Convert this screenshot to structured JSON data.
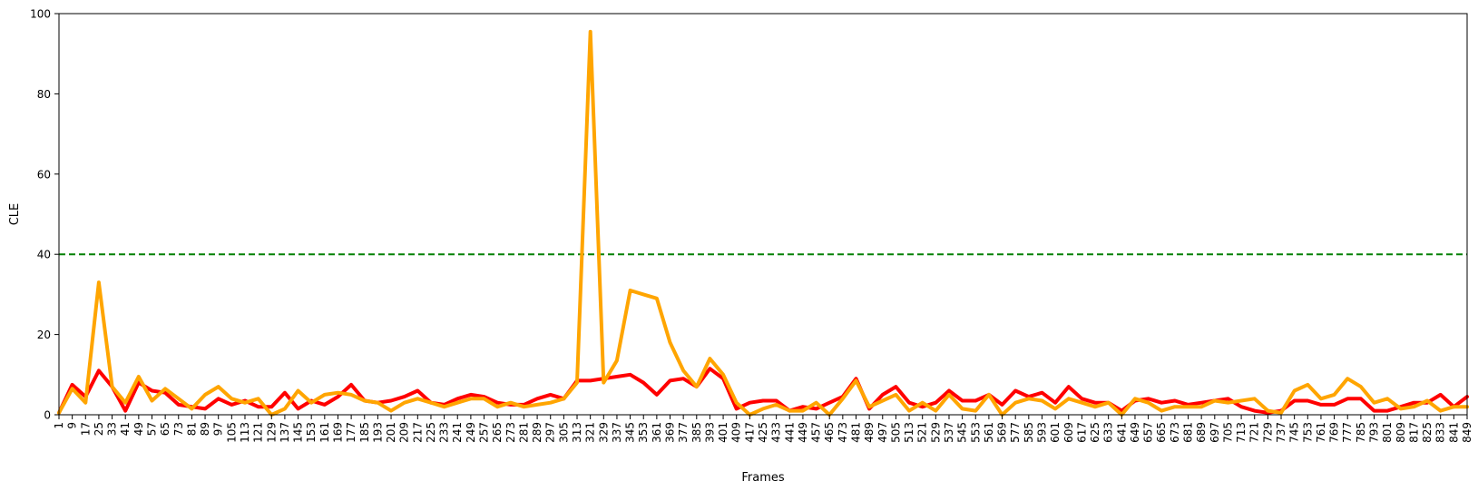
{
  "chart_data": {
    "type": "line",
    "xlabel": "Frames",
    "ylabel": "CLE",
    "ylim": [
      0,
      100
    ],
    "yticks": [
      0,
      20,
      40,
      60,
      80,
      100
    ],
    "x": [
      1,
      9,
      17,
      25,
      33,
      41,
      49,
      57,
      65,
      73,
      81,
      89,
      97,
      105,
      113,
      121,
      129,
      137,
      145,
      153,
      161,
      169,
      177,
      185,
      193,
      201,
      209,
      217,
      225,
      233,
      241,
      249,
      257,
      265,
      273,
      281,
      289,
      297,
      305,
      313,
      321,
      329,
      337,
      345,
      353,
      361,
      369,
      377,
      385,
      393,
      401,
      409,
      417,
      425,
      433,
      441,
      449,
      457,
      465,
      473,
      481,
      489,
      497,
      505,
      513,
      521,
      529,
      537,
      545,
      553,
      561,
      569,
      577,
      585,
      593,
      601,
      609,
      617,
      625,
      633,
      641,
      649,
      657,
      665,
      673,
      681,
      689,
      697,
      705,
      713,
      721,
      729,
      737,
      745,
      753,
      761,
      769,
      777,
      785,
      793,
      801,
      809,
      817,
      825,
      833,
      841,
      849
    ],
    "threshold": {
      "value": 40,
      "color": "#008000",
      "style": "dashed"
    },
    "series": [
      {
        "color": "#ff0000",
        "values": [
          0.5,
          7.5,
          4.5,
          11,
          7,
          1,
          8,
          6,
          5.5,
          2.5,
          2,
          1.5,
          4,
          2.5,
          3.5,
          2,
          2,
          5.5,
          1.5,
          3.5,
          2.5,
          4.5,
          7.5,
          3.5,
          3,
          3.5,
          4.5,
          6,
          3,
          2.5,
          4,
          5,
          4.5,
          3,
          2.5,
          2.5,
          4,
          5,
          4,
          8.5,
          8.5,
          9,
          9.5,
          10,
          8,
          5,
          8.5,
          9,
          7,
          11.5,
          9,
          1.5,
          3,
          3.5,
          3.5,
          1,
          2,
          1.5,
          3,
          4.5,
          9,
          1.5,
          5,
          7,
          3,
          2,
          3,
          6,
          3.5,
          3.5,
          5,
          2.5,
          6,
          4.5,
          5.5,
          3,
          7,
          4,
          3,
          3,
          1,
          3.5,
          4,
          3,
          3.5,
          2.5,
          3,
          3.5,
          4,
          2,
          1,
          0.5,
          1,
          3.5,
          3.5,
          2.5,
          2.5,
          4,
          4,
          1,
          1,
          2,
          3,
          3,
          5,
          2,
          4.5
        ]
      },
      {
        "color": "#ffa500",
        "values": [
          0.5,
          6.5,
          3,
          33,
          7,
          3,
          9.5,
          3.5,
          6.5,
          4,
          1.5,
          5,
          7,
          4,
          3,
          4,
          0,
          1.5,
          6,
          3,
          5,
          5.5,
          5,
          3.5,
          3,
          1,
          3,
          4,
          3,
          2,
          3,
          4,
          4,
          2,
          3,
          2,
          2.5,
          3,
          4,
          8,
          95.5,
          8,
          13.5,
          31,
          30,
          29,
          18,
          11,
          7,
          14,
          10,
          3,
          0,
          1.5,
          2.5,
          1,
          1,
          3,
          0,
          4,
          8.5,
          2,
          3.5,
          5,
          1,
          3,
          1,
          5,
          1.5,
          1,
          5,
          0,
          3,
          4,
          3.5,
          1.5,
          4,
          3,
          2,
          3,
          0,
          4,
          3,
          1,
          2,
          2,
          2,
          3.5,
          3,
          3.5,
          4,
          1,
          0.5,
          6,
          7.5,
          4,
          5,
          9,
          7,
          3,
          4,
          1.5,
          2,
          3.5,
          1,
          2,
          2
        ]
      }
    ]
  }
}
